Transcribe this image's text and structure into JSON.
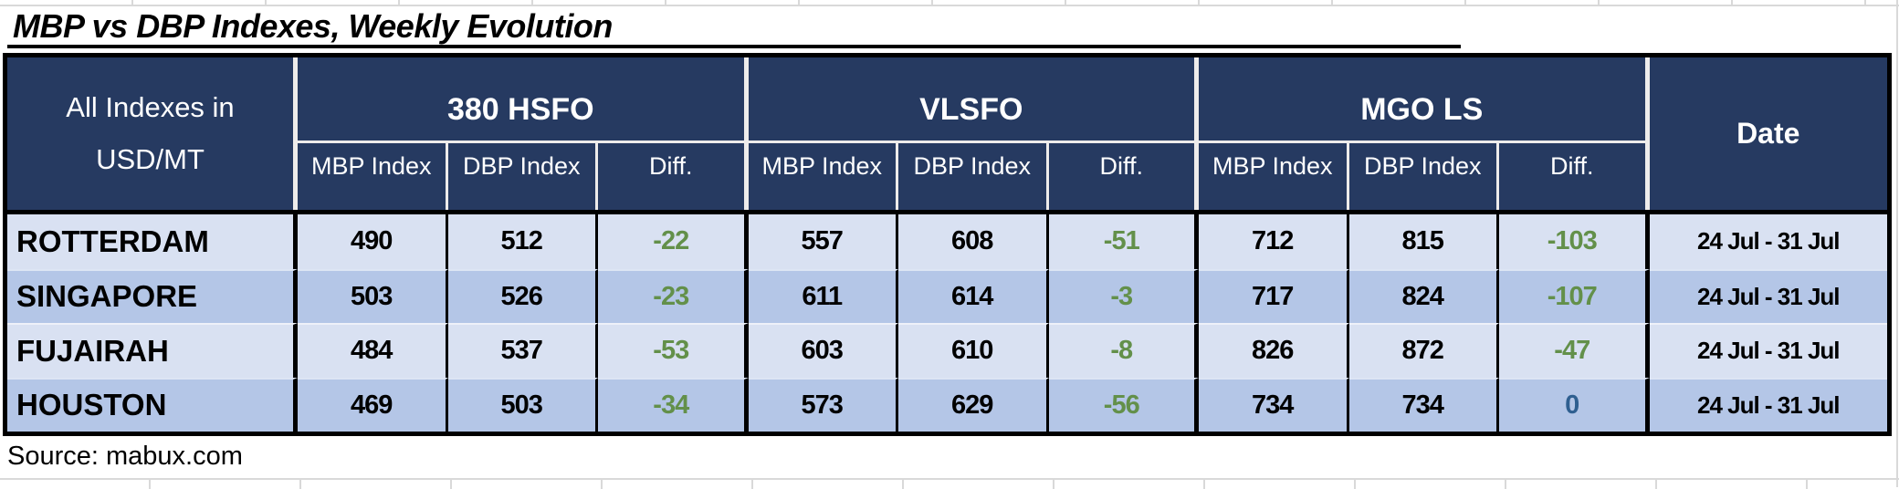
{
  "title": "MBP vs DBP Indexes, Weekly Evolution",
  "source": "Source: mabux.com",
  "table": {
    "corner_line1": "All Indexes in",
    "corner_line2": "USD/MT",
    "groups": [
      {
        "label": "380 HSFO"
      },
      {
        "label": "VLSFO"
      },
      {
        "label": "MGO LS"
      }
    ],
    "sub_headers": [
      "MBP Index",
      "DBP Index",
      "Diff."
    ],
    "date_header": "Date",
    "rows": [
      {
        "port": "ROTTERDAM",
        "values": [
          "490",
          "512",
          "-22",
          "557",
          "608",
          "-51",
          "712",
          "815",
          "-103"
        ],
        "date": "24 Jul - 31 Jul"
      },
      {
        "port": "SINGAPORE",
        "values": [
          "503",
          "526",
          "-23",
          "611",
          "614",
          "-3",
          "717",
          "824",
          "-107"
        ],
        "date": "24 Jul - 31 Jul"
      },
      {
        "port": "FUJAIRAH",
        "values": [
          "484",
          "537",
          "-53",
          "603",
          "610",
          "-8",
          "826",
          "872",
          "-47"
        ],
        "date": "24 Jul - 31 Jul"
      },
      {
        "port": "HOUSTON",
        "values": [
          "469",
          "503",
          "-34",
          "573",
          "629",
          "-56",
          "734",
          "734",
          "0"
        ],
        "date": "24 Jul - 31 Jul"
      }
    ]
  },
  "colors": {
    "header_navy": "#263a61",
    "row_light": "#d9e1f2",
    "row_dark": "#b4c6e7",
    "diff_green": "#63904a",
    "diff_zero_blue": "#2f5f90",
    "gridline_gray": "#d9d9d9",
    "border_black": "#000000",
    "header_border_white": "#eeeceb"
  }
}
